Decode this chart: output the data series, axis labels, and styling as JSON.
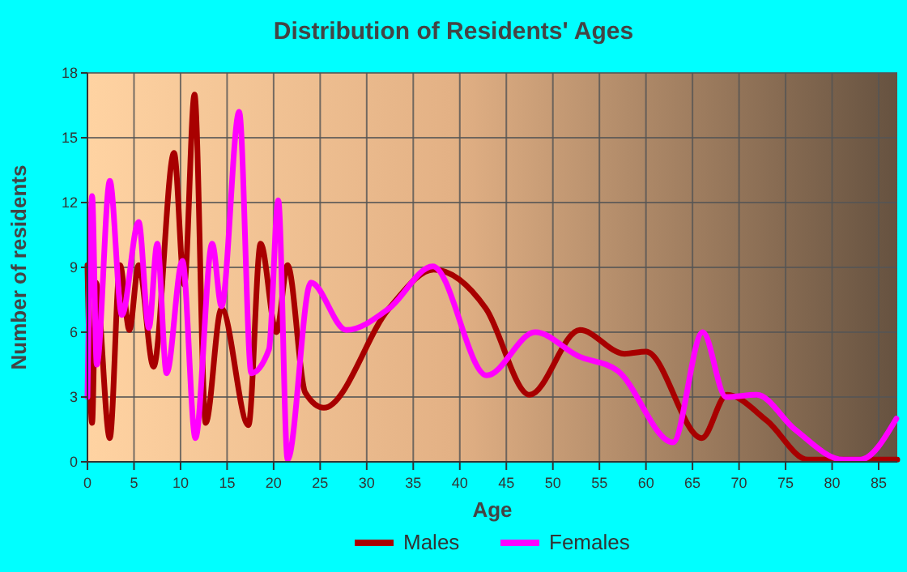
{
  "chart_data": {
    "type": "line",
    "title": "Distribution of Residents' Ages",
    "xlabel": "Age",
    "ylabel": "Number of residents",
    "xlim": [
      0,
      87
    ],
    "ylim": [
      0,
      18
    ],
    "xticks": [
      0,
      5,
      10,
      15,
      20,
      25,
      30,
      35,
      40,
      45,
      50,
      55,
      60,
      65,
      70,
      75,
      80,
      85
    ],
    "yticks": [
      0,
      3,
      6,
      9,
      12,
      15,
      18
    ],
    "grid": true,
    "legend": "bottom",
    "line_style": "solid",
    "marker": "none",
    "series": [
      {
        "name": "Males",
        "color": "#a80000",
        "x": [
          0,
          0.5,
          0.9,
          2.4,
          3.5,
          4.5,
          5.5,
          7.1,
          9.3,
          10.4,
          11.5,
          12.7,
          14.4,
          17.3,
          18.6,
          20.3,
          21.5,
          23.4,
          25.4,
          32.4,
          37.2,
          42.8,
          47.5,
          52.9,
          57.7,
          60,
          66,
          68.7,
          73,
          77.4,
          80,
          87
        ],
        "values": [
          9.1,
          1.8,
          8.3,
          1.1,
          9.1,
          6.1,
          9.1,
          4.4,
          14.3,
          8.2,
          17,
          1.8,
          7.1,
          1.7,
          10.1,
          6,
          9.1,
          3.2,
          2.5,
          7.1,
          8.9,
          7.1,
          3.1,
          6.1,
          5,
          5.1,
          1.1,
          3.1,
          1.9,
          0.1,
          0.1,
          0.1
        ]
      },
      {
        "name": "Females",
        "color": "#ff00ff",
        "x": [
          0,
          0.5,
          1,
          2.4,
          3.7,
          5.5,
          6.6,
          7.5,
          8.5,
          10.2,
          11.6,
          13.4,
          14.4,
          16.3,
          17.6,
          19.5,
          20.5,
          21.5,
          24,
          27.8,
          32.4,
          37.1,
          42.9,
          48.1,
          52.7,
          57,
          62.9,
          66.1,
          68.6,
          71.9,
          76,
          81.2,
          83,
          86.9
        ],
        "values": [
          3,
          12.3,
          4.5,
          13,
          6.8,
          11.1,
          6.2,
          10.1,
          4.1,
          9.3,
          1.1,
          10.1,
          7.2,
          16.2,
          4.1,
          5.2,
          12.1,
          0.1,
          8.3,
          6.1,
          7.1,
          9.05,
          4,
          6,
          4.9,
          4.2,
          0.9,
          6,
          3,
          3.1,
          1.5,
          0.1,
          0.1,
          2
        ]
      }
    ]
  }
}
